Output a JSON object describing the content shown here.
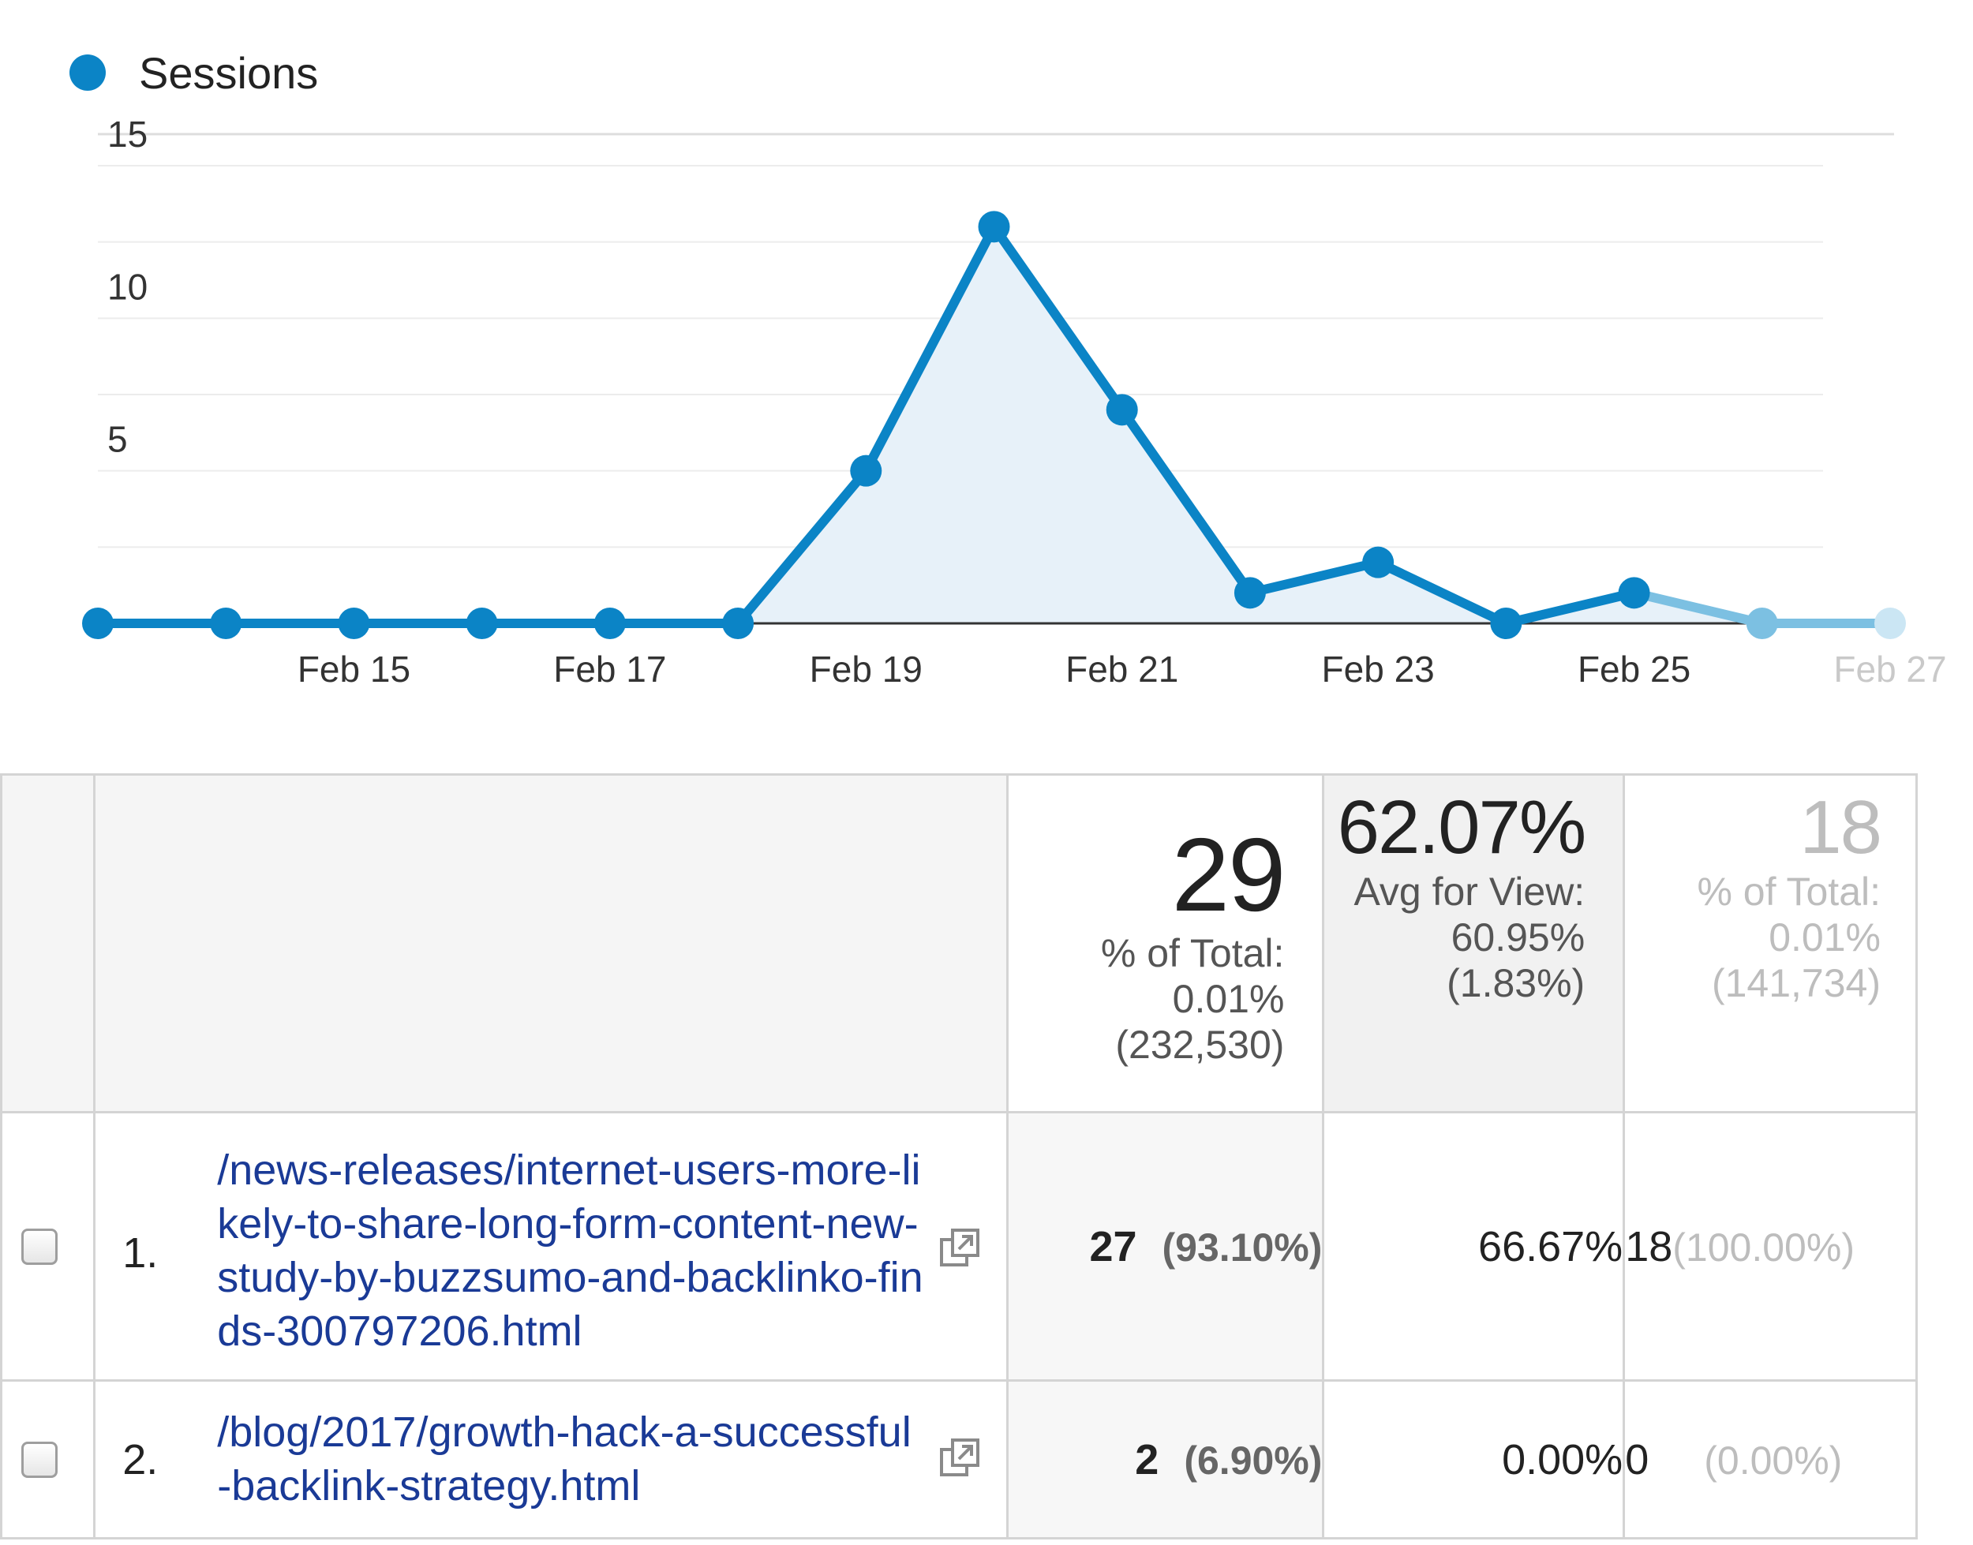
{
  "legend": {
    "label": "Sessions",
    "color": "#0b84c6"
  },
  "chart_data": {
    "type": "area",
    "series": [
      {
        "name": "Sessions",
        "x": [
          "Feb 13",
          "Feb 14",
          "Feb 15",
          "Feb 16",
          "Feb 17",
          "Feb 18",
          "Feb 19",
          "Feb 20",
          "Feb 21",
          "Feb 22",
          "Feb 23",
          "Feb 24",
          "Feb 25",
          "Feb 26",
          "Feb 27"
        ],
        "values": [
          0,
          0,
          0,
          0,
          0,
          0,
          5,
          13,
          7,
          1,
          2,
          0,
          1,
          0,
          0
        ]
      }
    ],
    "x_tick_labels": [
      "Feb 15",
      "Feb 17",
      "Feb 19",
      "Feb 21",
      "Feb 23",
      "Feb 25",
      "Feb 27"
    ],
    "y_tick_labels": [
      "15",
      "10",
      "5"
    ],
    "ylim": [
      0,
      15
    ],
    "grid": true,
    "line_color": "#0b84c6",
    "fill_color": "#e7f1f9"
  },
  "summary": {
    "sessions": {
      "value": "29",
      "line1": "% of Total:",
      "line2": "0.01%",
      "line3": "(232,530)"
    },
    "rate": {
      "value": "62.07%",
      "line1": "Avg for View:",
      "line2": "60.95%",
      "line3": "(1.83%)"
    },
    "last": {
      "value": "18",
      "line1": "% of Total:",
      "line2": "0.01%",
      "line3": "(141,734)"
    }
  },
  "rows": [
    {
      "index": "1.",
      "page": "/news-releases/internet-users-more-likely-to-share-long-form-content-new-study-by-buzzsumo-and-backlinko-finds-300797206.html",
      "sessions": "27",
      "sessions_pct": "(93.10%)",
      "rate": "66.67%",
      "last": "18",
      "last_pct": "(100.00%)"
    },
    {
      "index": "2.",
      "page": "/blog/2017/growth-hack-a-successful-backlink-strategy.html",
      "sessions": "2",
      "sessions_pct": "(6.90%)",
      "rate": "0.00%",
      "last": "0",
      "last_pct": "(0.00%)"
    }
  ],
  "icons": {
    "open_page": "open-in-new-window-icon"
  }
}
